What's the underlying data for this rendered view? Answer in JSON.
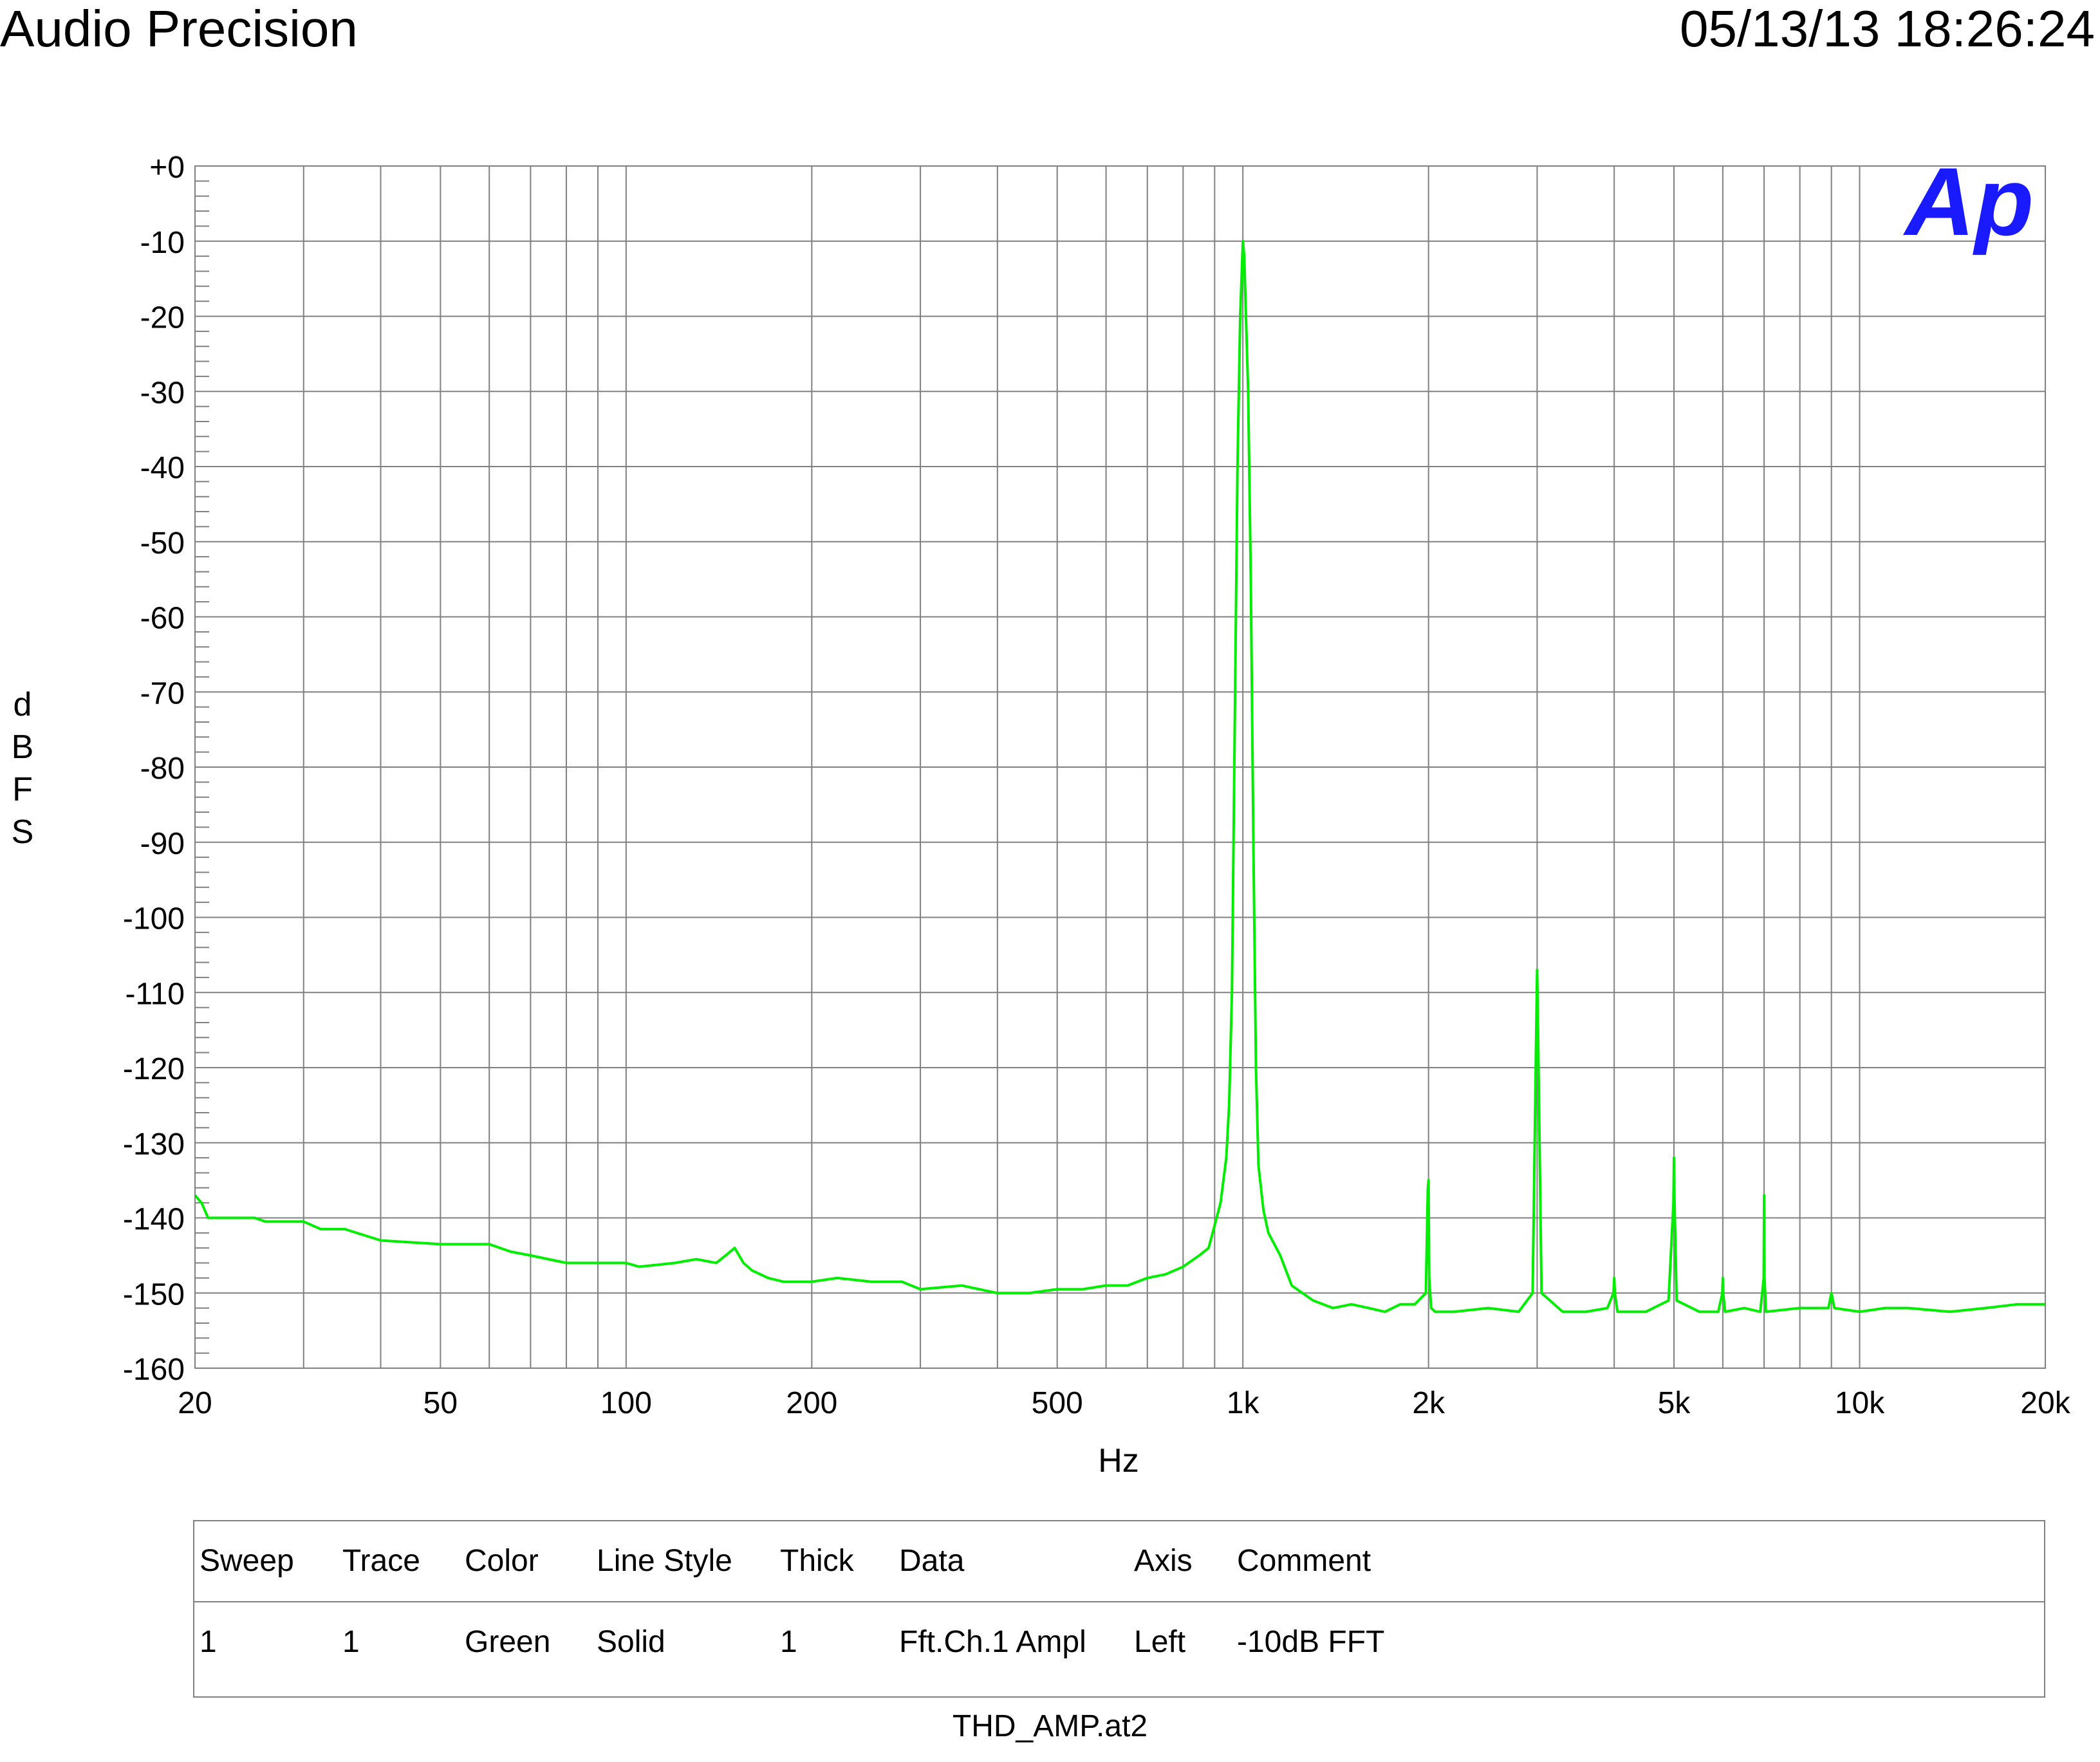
{
  "header": {
    "title": "Audio Precision",
    "timestamp": "05/13/13 18:26:24"
  },
  "logo": {
    "text": "Ap",
    "color": "#1a1aff"
  },
  "chart_data": {
    "type": "line",
    "xscale": "log",
    "xlim": [
      20,
      20000
    ],
    "ylim": [
      -160,
      0
    ],
    "xlabel": "Hz",
    "ylabel": "dBFS",
    "grid": true,
    "x_ticks": [
      {
        "value": 20,
        "label": "20"
      },
      {
        "value": 50,
        "label": "50"
      },
      {
        "value": 100,
        "label": "100"
      },
      {
        "value": 200,
        "label": "200"
      },
      {
        "value": 500,
        "label": "500"
      },
      {
        "value": 1000,
        "label": "1k"
      },
      {
        "value": 2000,
        "label": "2k"
      },
      {
        "value": 5000,
        "label": "5k"
      },
      {
        "value": 10000,
        "label": "10k"
      },
      {
        "value": 20000,
        "label": "20k"
      }
    ],
    "y_ticks": [
      {
        "value": 0,
        "label": "+0"
      },
      {
        "value": -10,
        "label": "-10"
      },
      {
        "value": -20,
        "label": "-20"
      },
      {
        "value": -30,
        "label": "-30"
      },
      {
        "value": -40,
        "label": "-40"
      },
      {
        "value": -50,
        "label": "-50"
      },
      {
        "value": -60,
        "label": "-60"
      },
      {
        "value": -70,
        "label": "-70"
      },
      {
        "value": -80,
        "label": "-80"
      },
      {
        "value": -90,
        "label": "-90"
      },
      {
        "value": -100,
        "label": "-100"
      },
      {
        "value": -110,
        "label": "-110"
      },
      {
        "value": -120,
        "label": "-120"
      },
      {
        "value": -130,
        "label": "-130"
      },
      {
        "value": -140,
        "label": "-140"
      },
      {
        "value": -150,
        "label": "-150"
      },
      {
        "value": -160,
        "label": "-160"
      }
    ],
    "series": [
      {
        "color": "#00ee00",
        "x": [
          20,
          20.5,
          21,
          25,
          26,
          30,
          32,
          35,
          40,
          50,
          60,
          65,
          70,
          80,
          90,
          100,
          105,
          120,
          130,
          140,
          145,
          150,
          155,
          160,
          170,
          180,
          200,
          220,
          250,
          280,
          300,
          350,
          400,
          450,
          500,
          550,
          600,
          650,
          700,
          750,
          800,
          850,
          880,
          900,
          920,
          940,
          950,
          960,
          970,
          980,
          990,
          1000,
          1005,
          1010,
          1020,
          1030,
          1040,
          1050,
          1060,
          1080,
          1100,
          1150,
          1200,
          1300,
          1400,
          1500,
          1600,
          1700,
          1800,
          1900,
          1980,
          1995,
          2000,
          2005,
          2020,
          2050,
          2200,
          2500,
          2800,
          2950,
          2990,
          3000,
          3010,
          3050,
          3300,
          3600,
          3900,
          3990,
          4000,
          4010,
          4050,
          4500,
          4900,
          4990,
          5000,
          5010,
          5050,
          5500,
          5900,
          5990,
          6000,
          6010,
          6050,
          6500,
          6900,
          6990,
          7000,
          7010,
          7050,
          8000,
          8900,
          9000,
          9100,
          10000,
          11000,
          12000,
          14000,
          16000,
          18000,
          20000
        ],
        "y": [
          -137,
          -138,
          -140,
          -140,
          -140.5,
          -140.5,
          -141.5,
          -141.5,
          -143,
          -143.5,
          -143.5,
          -144.5,
          -145,
          -146,
          -146,
          -146,
          -146.5,
          -146,
          -145.5,
          -146,
          -145,
          -144,
          -146,
          -147,
          -148,
          -148.5,
          -148.5,
          -148,
          -148.5,
          -148.5,
          -149.5,
          -149,
          -150,
          -150,
          -149.5,
          -149.5,
          -149,
          -149,
          -148,
          -147.5,
          -146.5,
          -145,
          -144,
          -141,
          -138,
          -132,
          -125,
          -110,
          -75,
          -40,
          -20,
          -10,
          -12,
          -18,
          -30,
          -55,
          -90,
          -120,
          -133,
          -139,
          -142,
          -145,
          -149,
          -151,
          -152,
          -151.5,
          -152,
          -152.5,
          -151.5,
          -151.5,
          -150,
          -136,
          -135,
          -148,
          -152,
          -152.5,
          -152.5,
          -152,
          -152.5,
          -150,
          -115,
          -107,
          -115,
          -150,
          -152.5,
          -152.5,
          -152,
          -150,
          -148,
          -150,
          -152.5,
          -152.5,
          -151,
          -138,
          -132,
          -138,
          -151,
          -152.5,
          -152.5,
          -150,
          -148,
          -150,
          -152.5,
          -152,
          -152.5,
          -148,
          -137,
          -148,
          -152.5,
          -152,
          -152,
          -150,
          -152,
          -152.5,
          -152,
          -152,
          -152.5,
          -152,
          -151.5,
          -151.5
        ]
      }
    ]
  },
  "legend": {
    "headers": [
      "Sweep",
      "Trace",
      "Color",
      "Line Style",
      "Thick",
      "Data",
      "Axis",
      "Comment"
    ],
    "row": [
      "1",
      "1",
      "Green",
      "Solid",
      "1",
      "Fft.Ch.1 Ampl",
      "Left",
      "-10dB FFT"
    ]
  },
  "footer": {
    "file": "THD_AMP.at2"
  }
}
